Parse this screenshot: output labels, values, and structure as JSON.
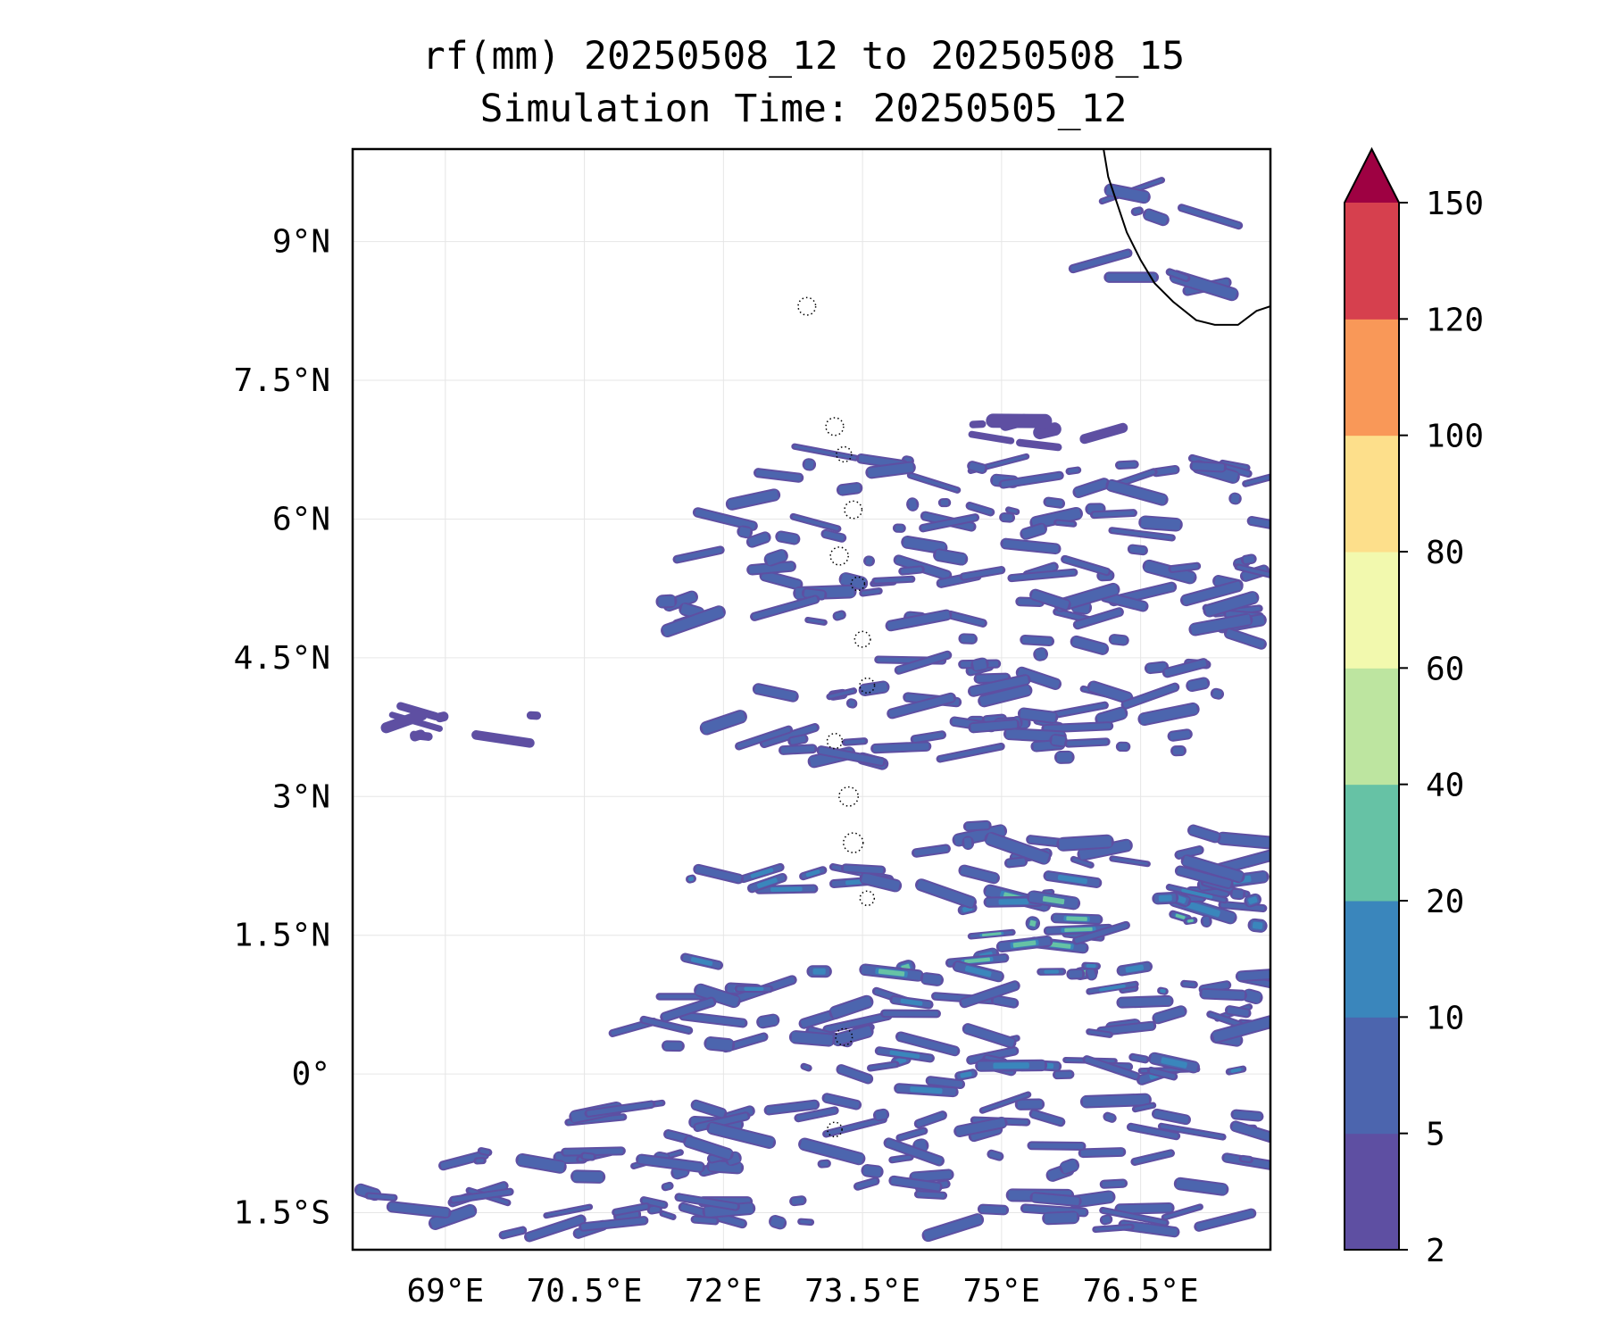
{
  "chart_data": {
    "type": "heatmap",
    "title": "rf(mm) 20250508_12 to 20250508_15",
    "subtitle": "Simulation Time: 20250505_12",
    "xlabel": "",
    "ylabel": "",
    "x_ticks": [
      {
        "value": 69.0,
        "label": "69°E"
      },
      {
        "value": 70.5,
        "label": "70.5°E"
      },
      {
        "value": 72.0,
        "label": "72°E"
      },
      {
        "value": 73.5,
        "label": "73.5°E"
      },
      {
        "value": 75.0,
        "label": "75°E"
      },
      {
        "value": 76.5,
        "label": "76.5°E"
      }
    ],
    "y_ticks": [
      {
        "value": 9.0,
        "label": "9°N"
      },
      {
        "value": 7.5,
        "label": "7.5°N"
      },
      {
        "value": 6.0,
        "label": "6°N"
      },
      {
        "value": 4.5,
        "label": "4.5°N"
      },
      {
        "value": 3.0,
        "label": "3°N"
      },
      {
        "value": 1.5,
        "label": "1.5°N"
      },
      {
        "value": 0.0,
        "label": "0°"
      },
      {
        "value": -1.5,
        "label": "1.5°S"
      }
    ],
    "xlim": [
      68.0,
      77.9
    ],
    "ylim": [
      -1.9,
      10.0
    ],
    "grid": true,
    "colorbar": {
      "levels": [
        2,
        5,
        10,
        20,
        40,
        60,
        80,
        100,
        120,
        150
      ],
      "labels": [
        "2",
        "5",
        "10",
        "20",
        "40",
        "60",
        "80",
        "100",
        "120",
        "150"
      ],
      "colors": [
        "#5e4fa2",
        "#4c65ae",
        "#3a86bc",
        "#66c2a5",
        "#bde5a0",
        "#f2f9ae",
        "#fddf8b",
        "#f99858",
        "#d6404e"
      ],
      "extend_color": "#9e0142",
      "extend": "max"
    },
    "rain_bands": [
      {
        "lat": 9.4,
        "lon_start": 76.3,
        "lon_end": 77.4,
        "value": 6
      },
      {
        "lat": 8.6,
        "lon_start": 76.0,
        "lon_end": 77.3,
        "value": 5
      },
      {
        "lat": 7.0,
        "lon_start": 74.5,
        "lon_end": 76.2,
        "value": 4
      },
      {
        "lat": 6.5,
        "lon_start": 72.5,
        "lon_end": 77.9,
        "value": 6
      },
      {
        "lat": 6.0,
        "lon_start": 72.0,
        "lon_end": 77.9,
        "value": 7
      },
      {
        "lat": 5.5,
        "lon_start": 71.5,
        "lon_end": 77.9,
        "value": 6
      },
      {
        "lat": 5.0,
        "lon_start": 71.0,
        "lon_end": 77.9,
        "value": 7
      },
      {
        "lat": 4.5,
        "lon_start": 74.0,
        "lon_end": 77.9,
        "value": 6
      },
      {
        "lat": 4.0,
        "lon_start": 72.5,
        "lon_end": 77.9,
        "value": 6
      },
      {
        "lat": 3.7,
        "lon_start": 68.0,
        "lon_end": 70.0,
        "value": 4
      },
      {
        "lat": 3.6,
        "lon_start": 71.5,
        "lon_end": 77.0,
        "value": 5
      },
      {
        "lat": 2.5,
        "lon_start": 74.0,
        "lon_end": 77.9,
        "value": 8
      },
      {
        "lat": 2.0,
        "lon_start": 71.5,
        "lon_end": 77.9,
        "value": 12
      },
      {
        "lat": 1.7,
        "lon_start": 75.0,
        "lon_end": 77.9,
        "value": 24
      },
      {
        "lat": 1.3,
        "lon_start": 73.8,
        "lon_end": 76.3,
        "value": 22
      },
      {
        "lat": 1.0,
        "lon_start": 71.5,
        "lon_end": 77.9,
        "value": 10
      },
      {
        "lat": 0.5,
        "lon_start": 71.0,
        "lon_end": 77.9,
        "value": 8
      },
      {
        "lat": 0.0,
        "lon_start": 72.5,
        "lon_end": 77.9,
        "value": 12
      },
      {
        "lat": -0.5,
        "lon_start": 70.0,
        "lon_end": 77.9,
        "value": 7
      },
      {
        "lat": -1.0,
        "lon_start": 68.5,
        "lon_end": 77.9,
        "value": 6
      },
      {
        "lat": -1.5,
        "lon_start": 68.0,
        "lon_end": 77.5,
        "value": 6
      }
    ]
  }
}
